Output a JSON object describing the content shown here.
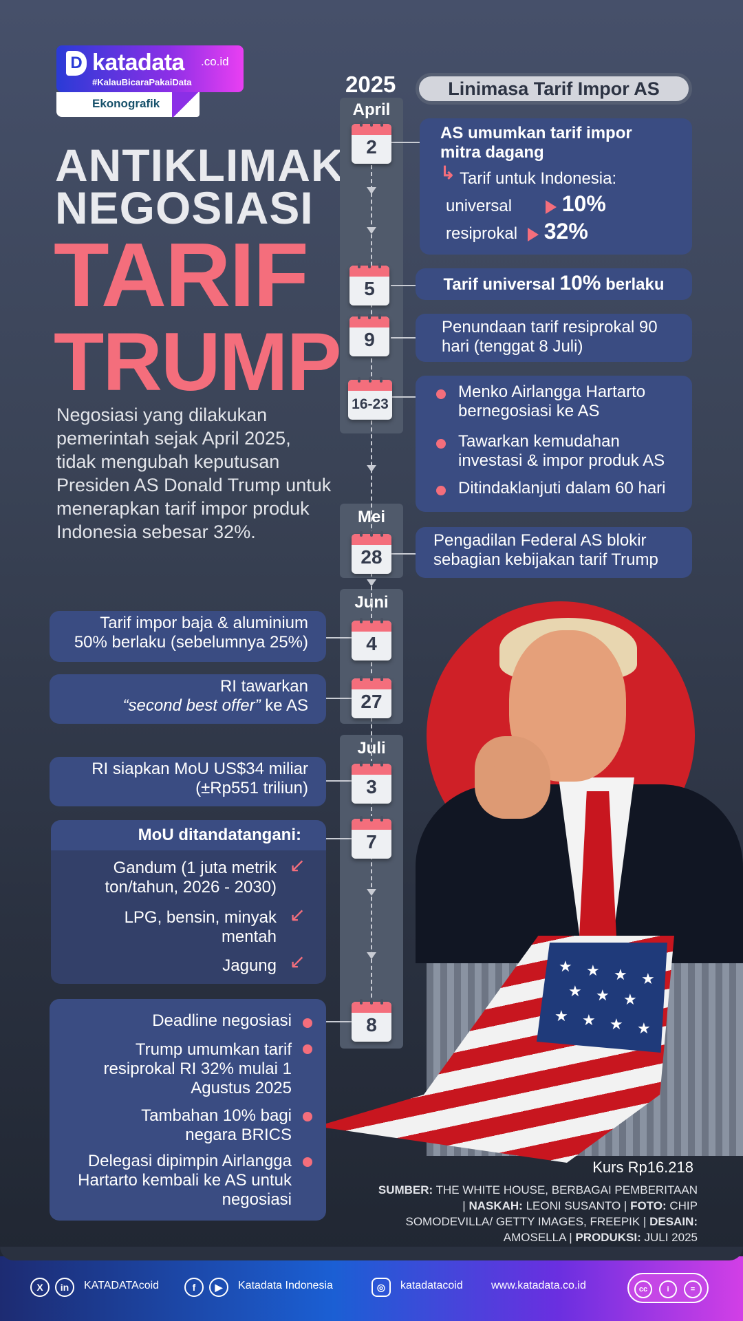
{
  "brand": {
    "name": "katadata",
    "tld": ".co.id",
    "hashtag": "#KalauBicaraPakaiData",
    "section": "Ekonografik"
  },
  "headline": {
    "line1": "ANTIKLIMAKS",
    "line2": "NEGOSIASI",
    "line3": "TARIF",
    "line4": "TRUMP"
  },
  "description": "Negosiasi yang dilakukan pemerintah sejak April 2025, tidak mengubah keputusan Presiden AS Donald Trump untuk menerapkan tarif impor produk Indonesia sebesar 32%.",
  "timeline": {
    "year": "2025",
    "title": "Linimasa Tarif Impor AS",
    "months": {
      "april": "April",
      "mei": "Mei",
      "juni": "Juni",
      "juli": "Juli"
    },
    "dates": {
      "apr2": "2",
      "apr5": "5",
      "apr9": "9",
      "apr16": "16-23",
      "mei28": "28",
      "jun4": "4",
      "jun27": "27",
      "jul3": "3",
      "jul7": "7",
      "jul8": "8"
    },
    "events": {
      "apr2_title": "AS umumkan tarif impor mitra dagang",
      "apr2_sub": "Tarif untuk Indonesia:",
      "apr2_universal_label": "universal",
      "apr2_universal_value": "10%",
      "apr2_resiprokal_label": "resiprokal",
      "apr2_resiprokal_value": "32%",
      "apr5_pre": "Tarif universal",
      "apr5_value": "10%",
      "apr5_post": "berlaku",
      "apr9": "Penundaan tarif resiprokal 90 hari (tenggat 8 Juli)",
      "apr16_b1": "Menko Airlangga Hartarto bernegosiasi ke AS",
      "apr16_b2": "Tawarkan kemudahan investasi & impor produk AS",
      "apr16_b3": "Ditindaklanjuti dalam 60 hari",
      "mei28": "Pengadilan Federal AS blokir sebagian kebijakan tarif Trump",
      "jun4": "Tarif impor baja & aluminium 50% berlaku (sebelumnya 25%)",
      "jun27_l1": "RI tawarkan",
      "jun27_q": "“second best offer”",
      "jun27_l2": "ke AS",
      "jul3": "RI siapkan MoU US$34 miliar (±Rp551 triliun)",
      "jul7_title": "MoU ditandatangani:",
      "jul7_i1": "Gandum (1 juta metrik ton/tahun, 2026 - 2030)",
      "jul7_i2": "LPG, bensin, minyak mentah",
      "jul7_i3": "Jagung",
      "jul8_b1": "Deadline negosiasi",
      "jul8_b2": "Trump umumkan tarif resiprokal RI 32% mulai 1 Agustus 2025",
      "jul8_b3": "Tambahan 10% bagi negara BRICS",
      "jul8_b4": "Delegasi dipimpin Airlangga Hartarto kembali ke AS untuk negosiasi"
    }
  },
  "credits": {
    "kurs": "Kurs Rp16.218",
    "sumber_label": "SUMBER:",
    "sumber": "THE WHITE HOUSE, BERBAGAI PEMBERITAAN |",
    "naskah_label": "NASKAH:",
    "naskah": "LEONI SUSANTO |",
    "foto_label": "FOTO:",
    "foto": "CHIP SOMODEVILLA/ GETTY IMAGES, FREEPIK |",
    "desain_label": "DESAIN:",
    "desain": "AMOSELLA |",
    "produksi_label": "PRODUKSI:",
    "produksi": "JULI 2025"
  },
  "footer": {
    "x_linkedin": "KATADATAcoid",
    "facebook_youtube": "Katadata Indonesia",
    "instagram": "katadatacoid",
    "website": "www.katadata.co.id"
  },
  "colors": {
    "accent_pink": "#f46e7c",
    "box_blue": "#3a4c82",
    "flag_red": "#c8161f"
  }
}
